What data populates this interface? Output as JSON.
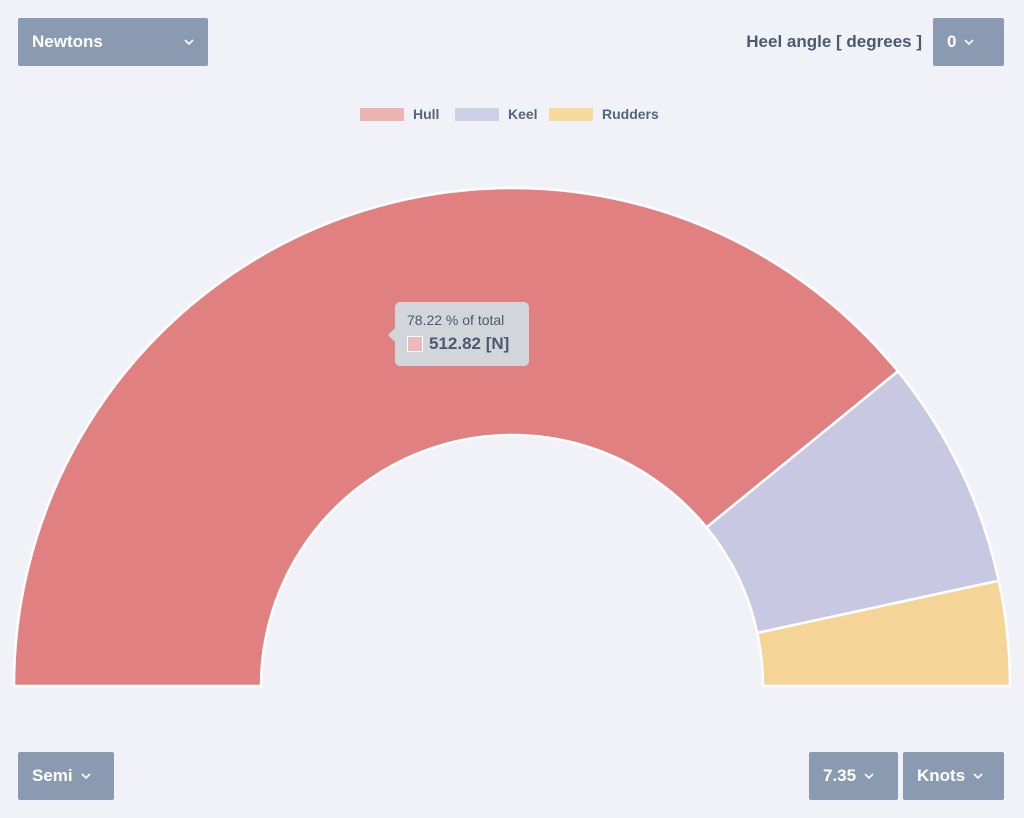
{
  "controls": {
    "unit": "Newtons",
    "heel_label": "Heel angle [ degrees ]",
    "heel_value": "0",
    "hull_type": "Semi",
    "speed_value": "7.35",
    "speed_unit": "Knots"
  },
  "icons": {
    "dropdown": "chevron-down-icon"
  },
  "chart_data": {
    "type": "pie",
    "variant": "half-doughnut",
    "categories": [
      "Hull",
      "Keel",
      "Rudders"
    ],
    "values": [
      78.22,
      15.0,
      6.78
    ],
    "unit": "% of total",
    "colors": [
      "#e08080",
      "#c8c8e2",
      "#f5d498"
    ],
    "legend_colors": [
      "#eeb4b4",
      "#cfcfe6",
      "#f8d99c"
    ],
    "legend": [
      "Hull",
      "Keel",
      "Rudders"
    ],
    "legend_position": "top",
    "tooltip": {
      "series": "Hull",
      "line1": "78.22 % of total",
      "line2": "512.82 [N]"
    }
  }
}
